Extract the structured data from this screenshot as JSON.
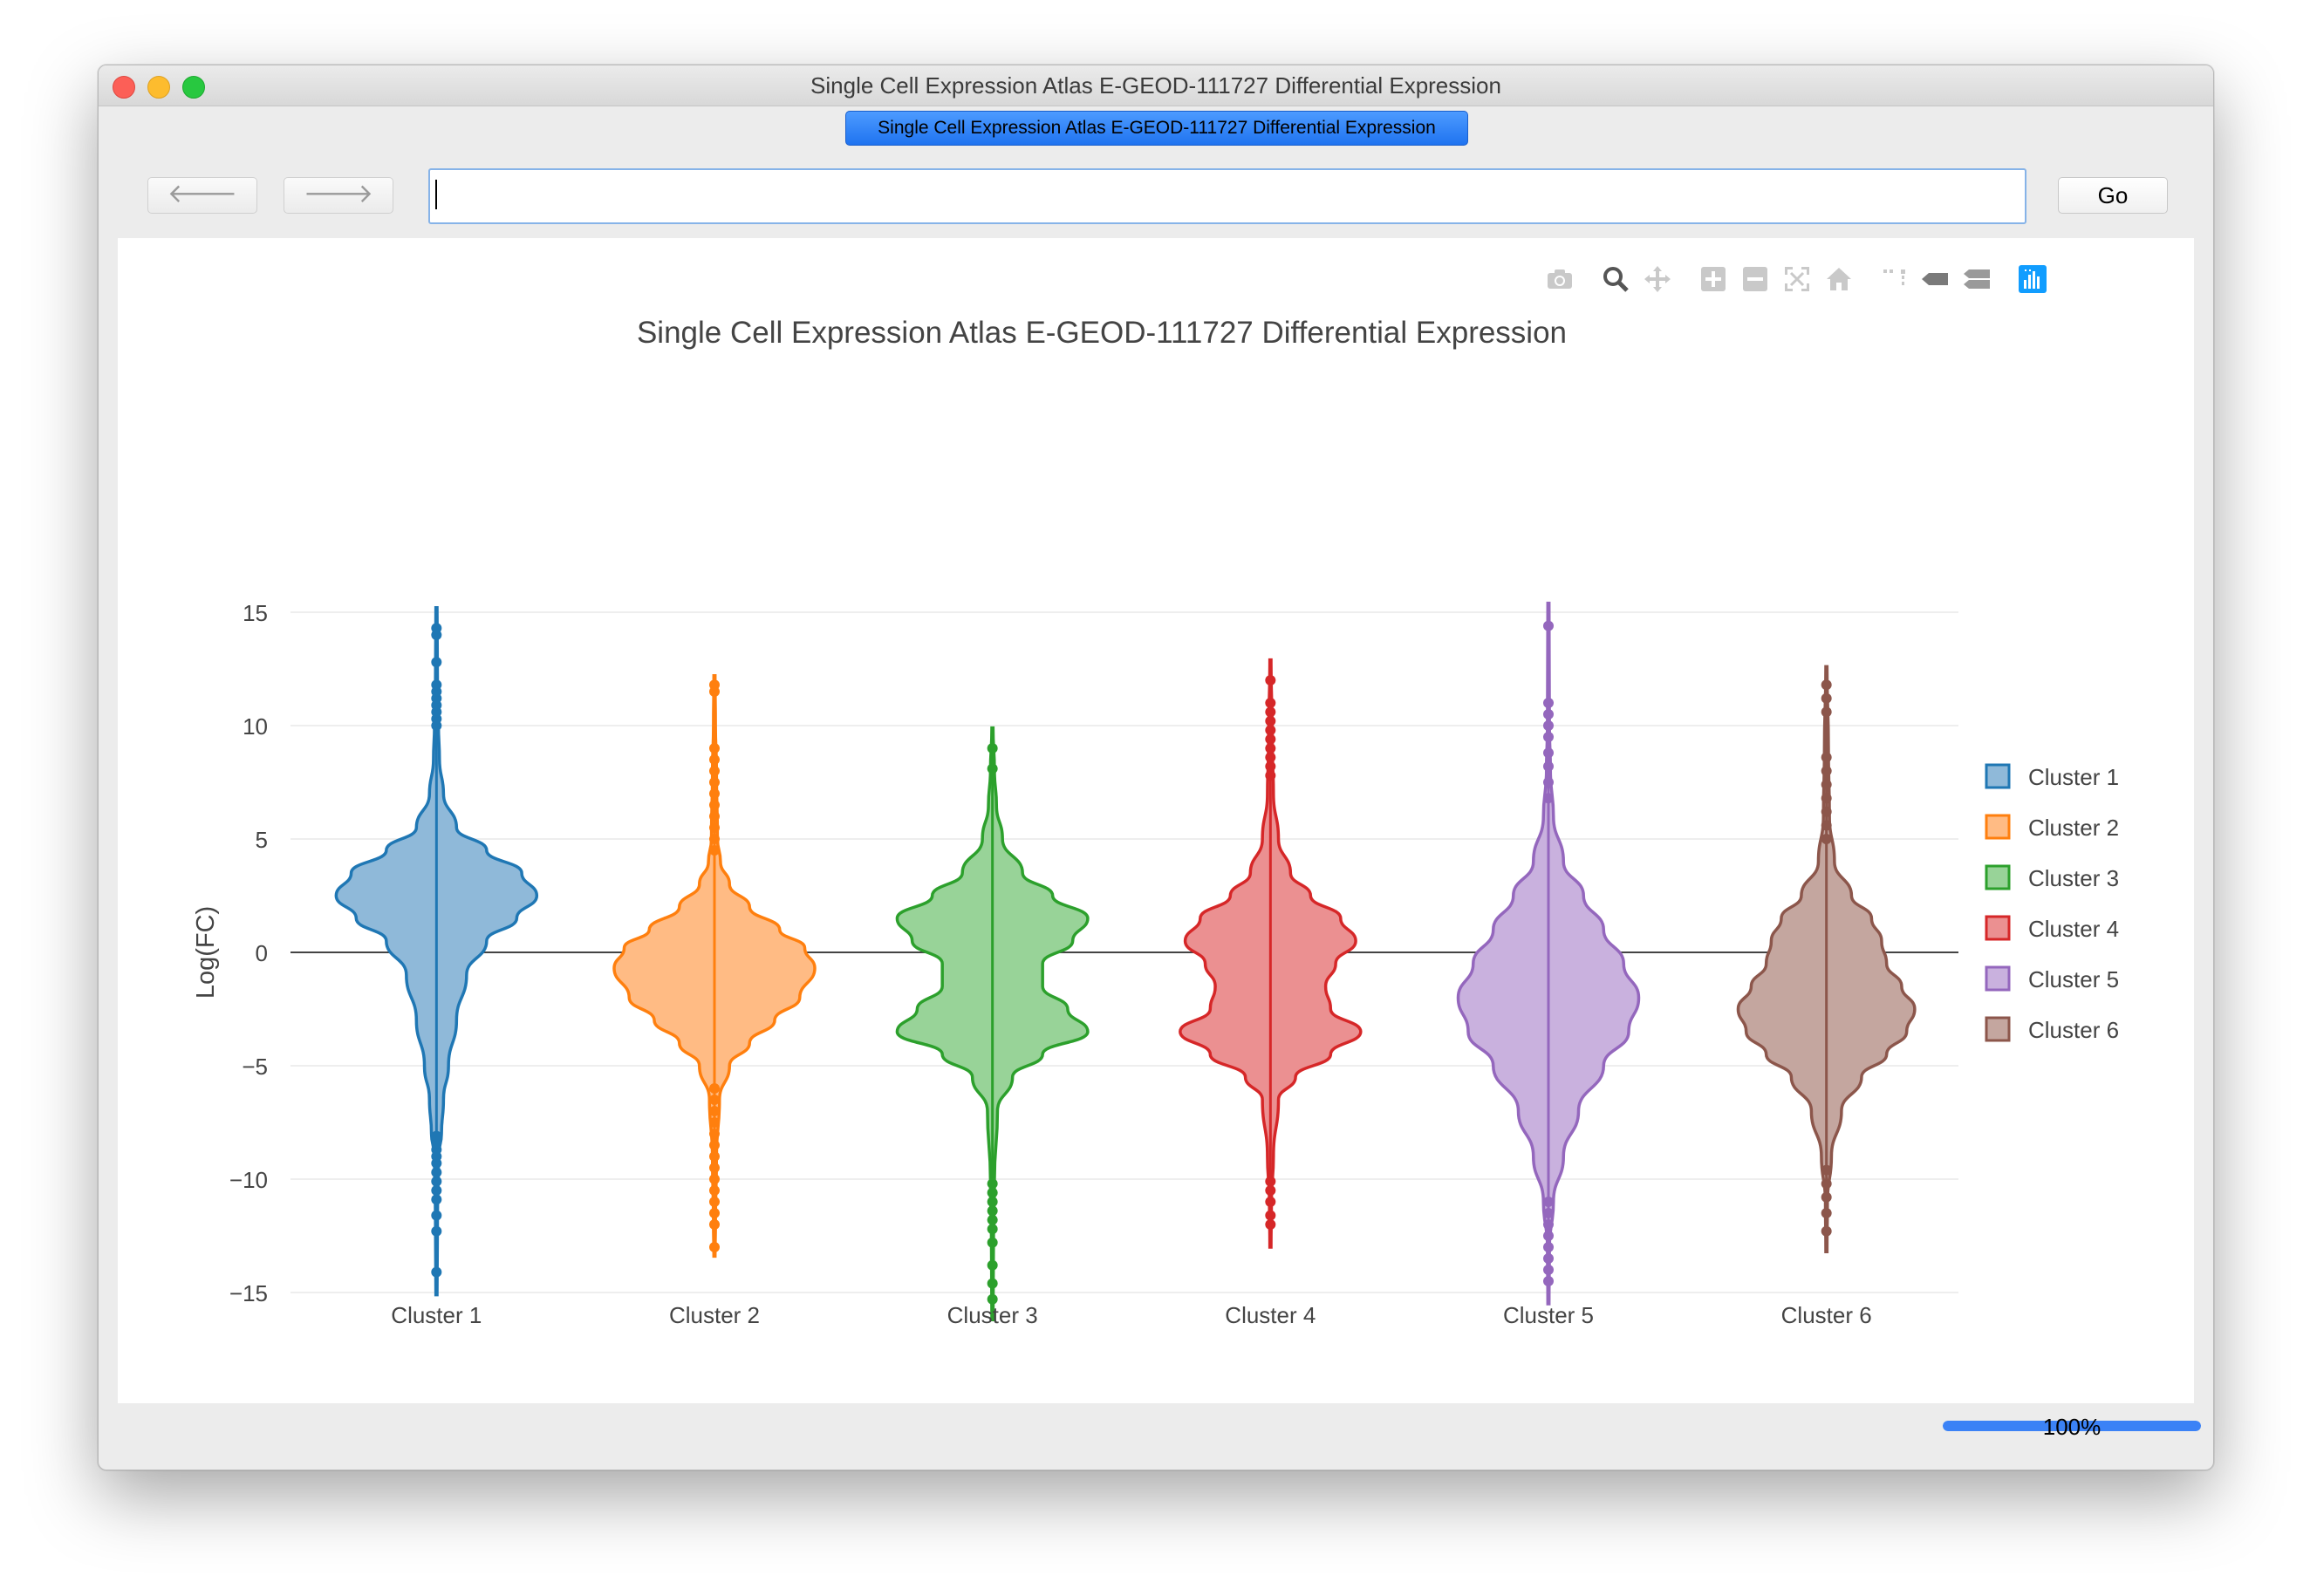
{
  "window": {
    "title": "Single Cell Expression Atlas E-GEOD-111727 Differential Expression",
    "tab_label": "Single Cell Expression Atlas E-GEOD-111727 Differential Expression"
  },
  "toolbar": {
    "back_icon": "arrow-left-icon",
    "forward_icon": "arrow-right-icon",
    "back_label": "🡐",
    "forward_label": "🡒",
    "url_value": "",
    "go_label": "Go"
  },
  "modebar": {
    "icons": [
      "camera-icon",
      "zoom-icon",
      "pan-icon",
      "zoom-in-icon",
      "zoom-out-icon",
      "autoscale-icon",
      "reset-axes-icon",
      "spike-lines-icon",
      "hover-closest-icon",
      "hover-compare-icon",
      "plotly-logo-icon"
    ]
  },
  "status": {
    "progress_text": "100%",
    "progress_fraction": 1.0
  },
  "chart_data": {
    "type": "violin",
    "title": "Single Cell Expression Atlas E-GEOD-111727 Differential Expression",
    "ylabel": "Log(FC)",
    "xlabel": "",
    "ylim": [
      -16.5,
      16.5
    ],
    "yticks": [
      15,
      10,
      5,
      0,
      -5,
      -10,
      -15
    ],
    "ytick_labels": [
      "15",
      "10",
      "5",
      "0",
      "−5",
      "−10",
      "−15"
    ],
    "categories": [
      "Cluster 1",
      "Cluster 2",
      "Cluster 3",
      "Cluster 4",
      "Cluster 5",
      "Cluster 6"
    ],
    "grid": true,
    "zero_line": true,
    "legend_position": "right",
    "series": [
      {
        "name": "Cluster 1",
        "color": "#1f77b4",
        "fill": "#8fb9d9",
        "range": [
          -15.1,
          15.2
        ],
        "profile": [
          [
            -15.1,
            0.006
          ],
          [
            -12,
            0.01
          ],
          [
            -9,
            0.02
          ],
          [
            -8,
            0.05
          ],
          [
            -6.5,
            0.07
          ],
          [
            -5,
            0.12
          ],
          [
            -3,
            0.2
          ],
          [
            -1,
            0.3
          ],
          [
            0.5,
            0.5
          ],
          [
            1.5,
            0.8
          ],
          [
            2.5,
            1.0
          ],
          [
            3.5,
            0.85
          ],
          [
            4.5,
            0.5
          ],
          [
            5.5,
            0.2
          ],
          [
            7,
            0.07
          ],
          [
            8.5,
            0.03
          ],
          [
            10,
            0.02
          ],
          [
            12,
            0.01
          ],
          [
            15.2,
            0.006
          ]
        ],
        "outliers": [
          -14.1,
          -12.3,
          -11.6,
          -10.9,
          -10.5,
          -10.1,
          -9.7,
          -9.3,
          -9.0,
          -8.7,
          -8.4,
          -8.1,
          10.0,
          10.3,
          10.6,
          10.9,
          11.2,
          11.5,
          11.8,
          12.8,
          14.0,
          14.3
        ]
      },
      {
        "name": "Cluster 2",
        "color": "#ff7f0e",
        "fill": "#ffbb84",
        "range": [
          -13.4,
          12.2
        ],
        "profile": [
          [
            -13.4,
            0.006
          ],
          [
            -12,
            0.01
          ],
          [
            -9,
            0.02
          ],
          [
            -6.5,
            0.05
          ],
          [
            -5,
            0.15
          ],
          [
            -4,
            0.35
          ],
          [
            -3,
            0.6
          ],
          [
            -2,
            0.85
          ],
          [
            -0.7,
            1.0
          ],
          [
            0.2,
            0.9
          ],
          [
            1,
            0.65
          ],
          [
            2,
            0.35
          ],
          [
            3,
            0.15
          ],
          [
            4,
            0.06
          ],
          [
            5,
            0.03
          ],
          [
            8,
            0.02
          ],
          [
            10,
            0.01
          ],
          [
            12.2,
            0.006
          ]
        ],
        "outliers": [
          -13.0,
          -12.0,
          -11.5,
          -11.0,
          -10.5,
          -10.0,
          -9.5,
          -9.0,
          -8.5,
          -8.0,
          -7.5,
          -7.0,
          -6.5,
          -6.0,
          4.5,
          5.0,
          5.5,
          6.0,
          6.5,
          7.0,
          7.5,
          8.0,
          8.5,
          9.0,
          11.5,
          11.8
        ]
      },
      {
        "name": "Cluster 3",
        "color": "#2ca02c",
        "fill": "#98d398",
        "range": [
          -16.2,
          9.9
        ],
        "profile": [
          [
            -16.2,
            0.006
          ],
          [
            -13,
            0.01
          ],
          [
            -10,
            0.02
          ],
          [
            -7,
            0.05
          ],
          [
            -5.5,
            0.2
          ],
          [
            -4.5,
            0.5
          ],
          [
            -3.5,
            0.95
          ],
          [
            -2.5,
            0.75
          ],
          [
            -1.5,
            0.5
          ],
          [
            -0.5,
            0.5
          ],
          [
            0.5,
            0.8
          ],
          [
            1.5,
            0.95
          ],
          [
            2.5,
            0.6
          ],
          [
            3.5,
            0.3
          ],
          [
            5,
            0.1
          ],
          [
            6.5,
            0.04
          ],
          [
            8,
            0.02
          ],
          [
            9.9,
            0.006
          ]
        ],
        "outliers": [
          -15.3,
          -14.6,
          -13.8,
          -12.8,
          -12.2,
          -11.8,
          -11.4,
          -11.0,
          -10.6,
          -10.2,
          8.1,
          9.0
        ]
      },
      {
        "name": "Cluster 4",
        "color": "#d62728",
        "fill": "#eb9091",
        "range": [
          -13.0,
          12.9
        ],
        "profile": [
          [
            -13,
            0.006
          ],
          [
            -11,
            0.01
          ],
          [
            -9,
            0.03
          ],
          [
            -6.5,
            0.08
          ],
          [
            -5.5,
            0.25
          ],
          [
            -4.5,
            0.6
          ],
          [
            -3.5,
            0.9
          ],
          [
            -2.5,
            0.6
          ],
          [
            -1.5,
            0.55
          ],
          [
            -0.5,
            0.65
          ],
          [
            0.5,
            0.85
          ],
          [
            1.5,
            0.7
          ],
          [
            2.5,
            0.4
          ],
          [
            3.5,
            0.2
          ],
          [
            5,
            0.08
          ],
          [
            7,
            0.03
          ],
          [
            9,
            0.02
          ],
          [
            12.9,
            0.006
          ]
        ],
        "outliers": [
          -12.0,
          -11.6,
          -11.0,
          -10.5,
          -10.1,
          7.8,
          8.2,
          8.6,
          9.0,
          9.4,
          9.8,
          10.2,
          10.6,
          11.0,
          12.0
        ]
      },
      {
        "name": "Cluster 5",
        "color": "#9467bd",
        "fill": "#c9b1de",
        "range": [
          -15.5,
          15.4
        ],
        "profile": [
          [
            -15.5,
            0.006
          ],
          [
            -13,
            0.01
          ],
          [
            -11,
            0.05
          ],
          [
            -9,
            0.15
          ],
          [
            -7,
            0.3
          ],
          [
            -5,
            0.55
          ],
          [
            -3.5,
            0.8
          ],
          [
            -2,
            0.9
          ],
          [
            -0.5,
            0.75
          ],
          [
            1,
            0.55
          ],
          [
            2.5,
            0.35
          ],
          [
            4,
            0.15
          ],
          [
            6,
            0.05
          ],
          [
            8,
            0.02
          ],
          [
            10,
            0.01
          ],
          [
            15.4,
            0.006
          ]
        ],
        "outliers": [
          -14.5,
          -14.0,
          -13.5,
          -13.0,
          -12.5,
          -12.0,
          -11.5,
          -11.0,
          6.8,
          7.5,
          8.2,
          8.8,
          9.5,
          10.0,
          10.5,
          11.0,
          14.4
        ]
      },
      {
        "name": "Cluster 6",
        "color": "#8c564b",
        "fill": "#c4a69f",
        "range": [
          -13.2,
          12.6
        ],
        "profile": [
          [
            -13.2,
            0.006
          ],
          [
            -11,
            0.01
          ],
          [
            -9,
            0.05
          ],
          [
            -7,
            0.15
          ],
          [
            -5.5,
            0.35
          ],
          [
            -4.5,
            0.6
          ],
          [
            -3.5,
            0.8
          ],
          [
            -2.5,
            0.88
          ],
          [
            -1.5,
            0.75
          ],
          [
            -0.5,
            0.6
          ],
          [
            0.5,
            0.55
          ],
          [
            1.5,
            0.45
          ],
          [
            2.5,
            0.25
          ],
          [
            4,
            0.08
          ],
          [
            6,
            0.03
          ],
          [
            9,
            0.02
          ],
          [
            12.6,
            0.006
          ]
        ],
        "outliers": [
          -12.3,
          -11.5,
          -10.8,
          -10.2,
          -9.6,
          5.0,
          5.6,
          6.2,
          6.8,
          7.4,
          8.0,
          8.6,
          10.6,
          11.2,
          11.8
        ]
      }
    ]
  }
}
